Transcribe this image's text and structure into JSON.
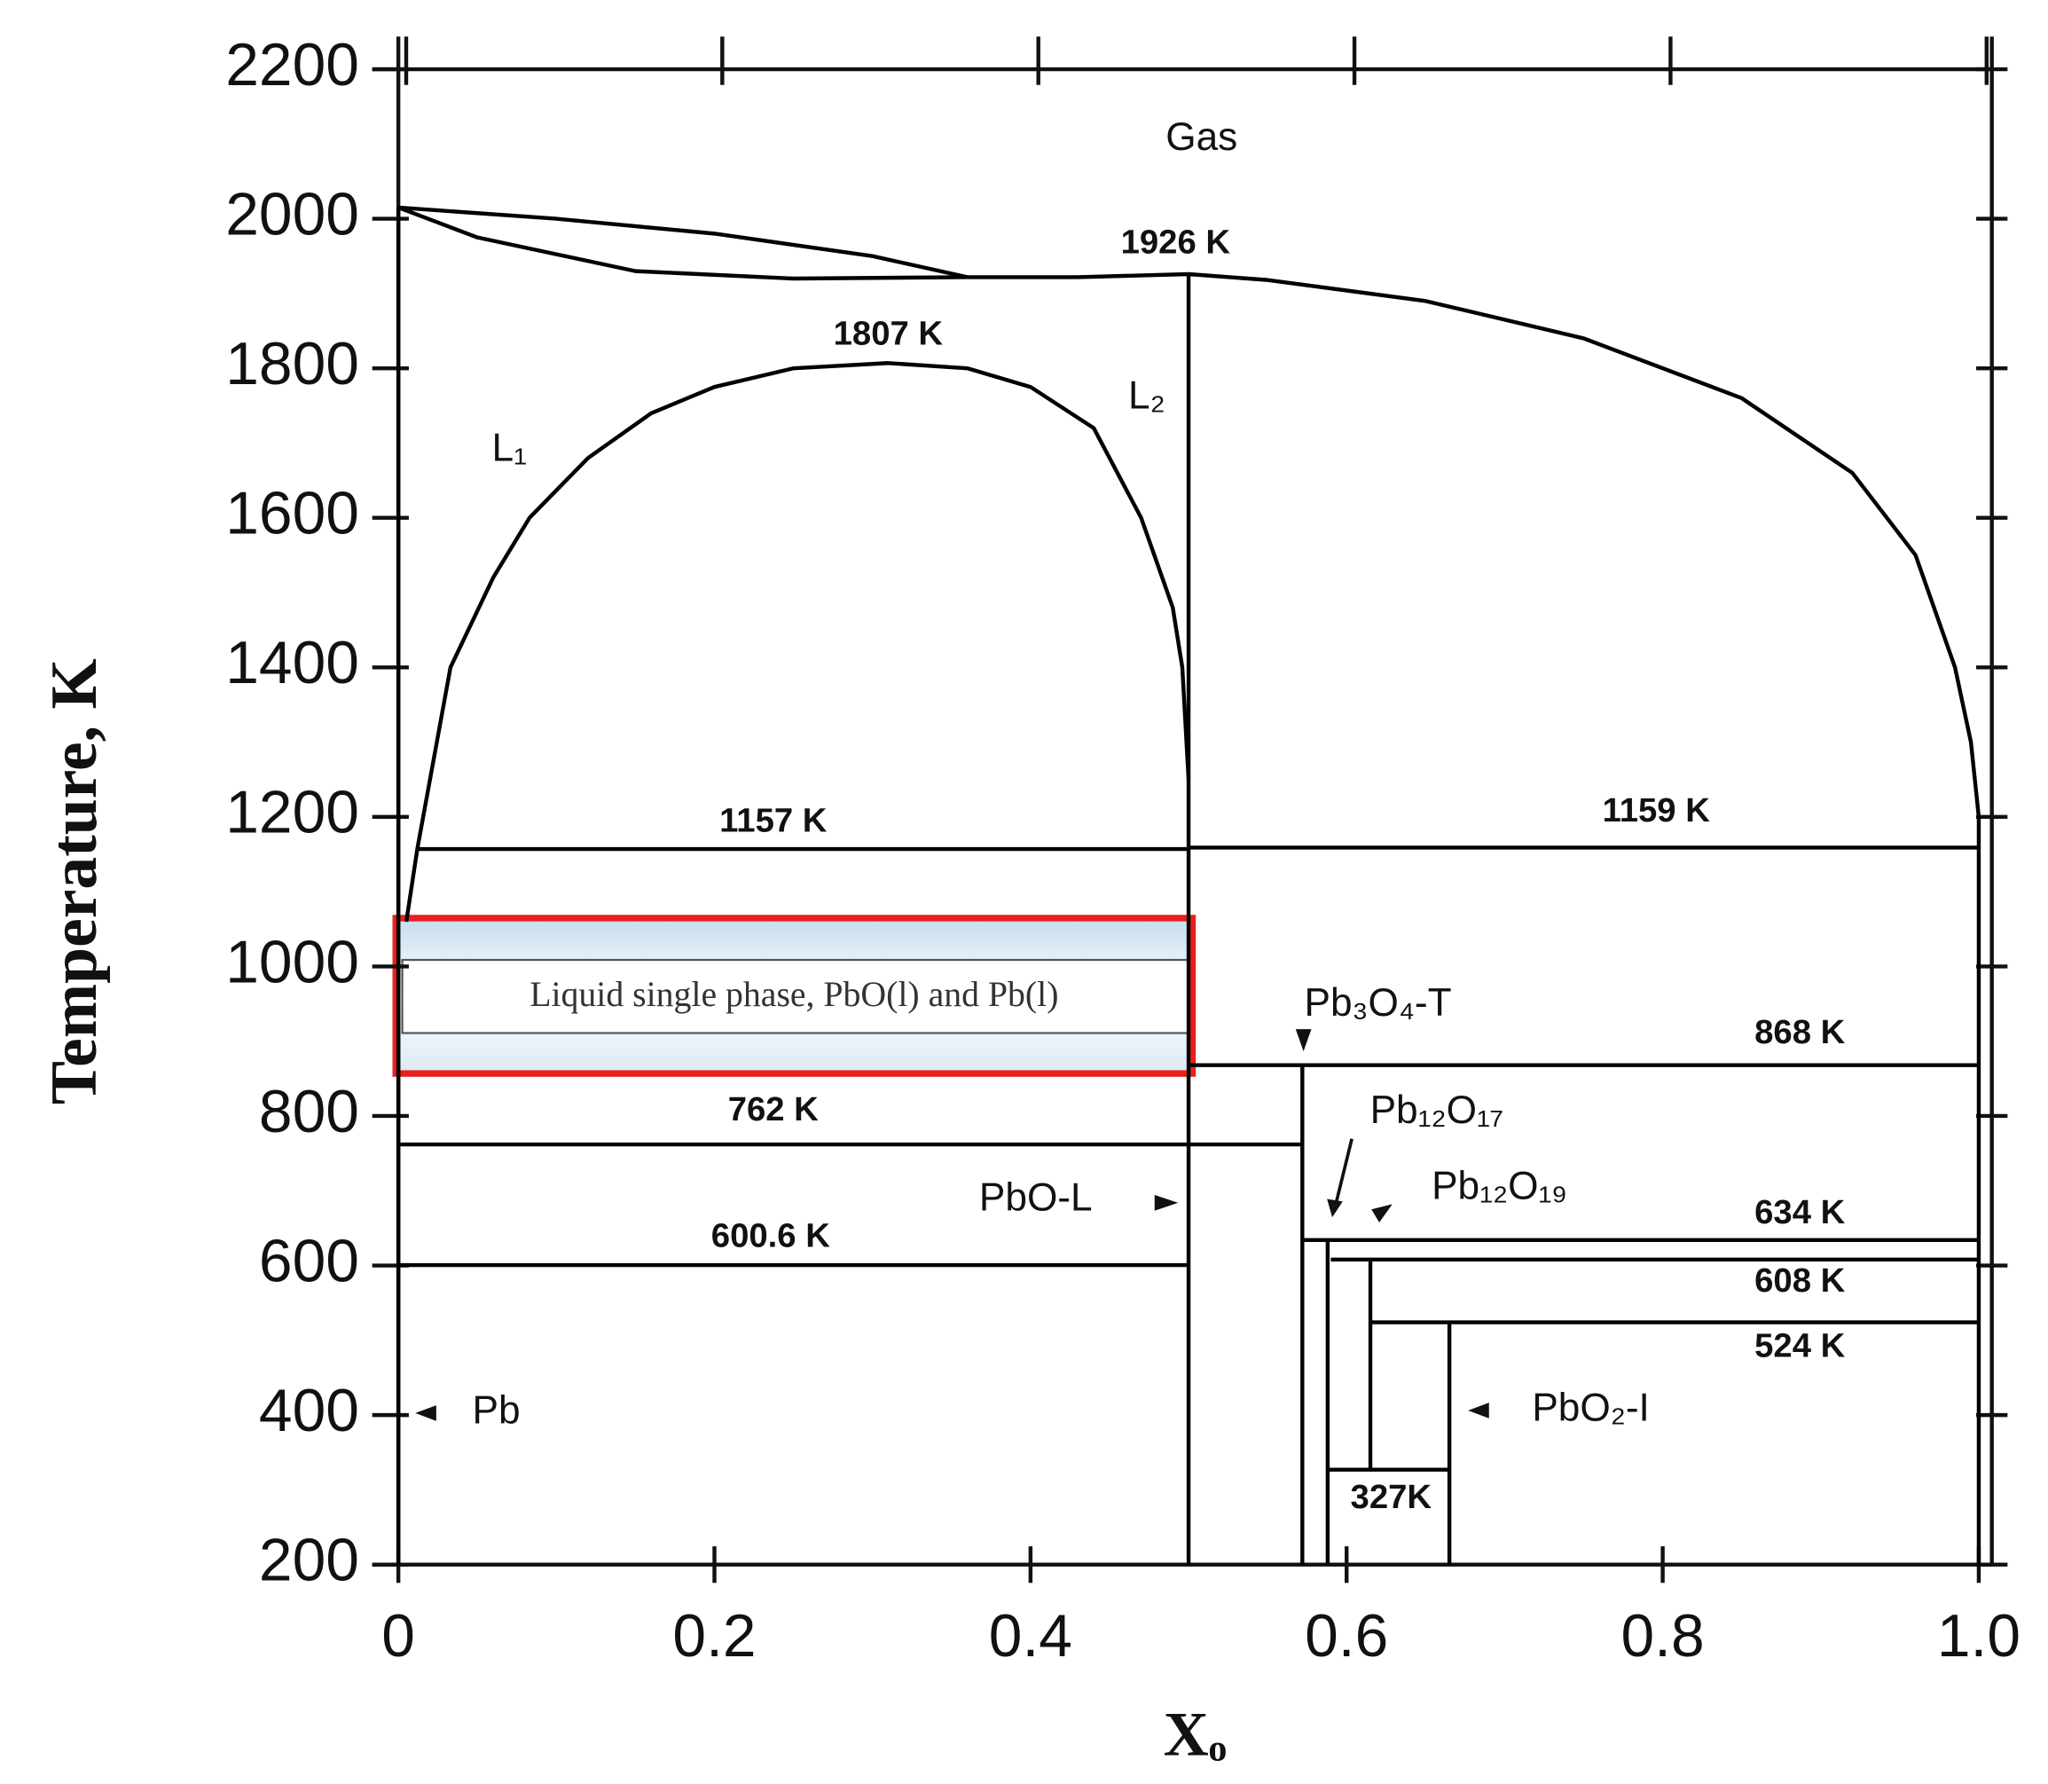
{
  "chart_data": {
    "type": "line",
    "color": "#000000",
    "ylabel": "Temperature, K",
    "xlabel": "Xₒ",
    "xlim": [
      0,
      1
    ],
    "xticks": [
      0,
      0.2,
      0.4,
      0.6,
      0.8,
      {
        "value": 1,
        "label": "1.0"
      }
    ],
    "ylim": [
      200,
      2200
    ],
    "yticks": [
      200,
      400,
      600,
      800,
      1000,
      1200,
      1400,
      1600,
      1800,
      2000,
      2200
    ],
    "grid": false,
    "highlight": "Liquid  single  phase, PbO(l) and Pb(l)",
    "annotations": [
      "Gas",
      "1926 K",
      "1807 K",
      "L₁",
      "L₂",
      "1157 K",
      "1159 K",
      "Pb₃O₄-T",
      "868 K",
      "762 K",
      "Pb₁₂O₁₇",
      "Pb₁₂O₁₉",
      "PbO-L",
      "634 K",
      "600.6 K",
      "608 K",
      "524 K",
      "Pb",
      "PbO₂-I",
      "327K"
    ],
    "series": [
      {
        "x": [
          0,
          0
        ],
        "values": [
          200,
          2015
        ]
      },
      {
        "x": [
          0.005,
          0.012,
          0.033,
          0.06,
          0.083,
          0.12,
          0.16,
          0.2,
          0.25,
          0.31,
          0.36,
          0.4,
          0.44,
          0.47,
          0.49,
          0.496,
          0.5
        ],
        "values": [
          1060,
          1157,
          1400,
          1520,
          1600,
          1680,
          1740,
          1775,
          1800,
          1807,
          1800,
          1775,
          1720,
          1600,
          1480,
          1400,
          1250
        ]
      },
      {
        "x": [
          0,
          0.1,
          0.2,
          0.3,
          0.36
        ],
        "values": [
          2015,
          2000,
          1980,
          1950,
          1922
        ]
      },
      {
        "x": [
          0,
          0.05,
          0.15,
          0.25,
          0.36,
          0.43,
          0.5,
          0.55,
          0.65,
          0.75,
          0.85,
          0.92,
          0.96,
          0.985,
          0.995,
          1
        ],
        "values": [
          2015,
          1975,
          1930,
          1920,
          1922,
          1922,
          1926,
          1918,
          1890,
          1840,
          1760,
          1660,
          1550,
          1400,
          1300,
          1200
        ]
      },
      {
        "x": [
          0.5,
          0.5
        ],
        "values": [
          200,
          1926
        ]
      },
      {
        "x": [
          0.012,
          0.5
        ],
        "values": [
          1157,
          1157
        ]
      },
      {
        "x": [
          0.5,
          1
        ],
        "values": [
          1159,
          1159
        ]
      },
      {
        "x": [
          0.5,
          1
        ],
        "values": [
          868,
          868
        ]
      },
      {
        "x": [
          0,
          0.572
        ],
        "values": [
          762,
          762
        ]
      },
      {
        "x": [
          0,
          0.5
        ],
        "values": [
          600.6,
          600.6
        ]
      },
      {
        "x": [
          0.572,
          1
        ],
        "values": [
          634,
          634
        ]
      },
      {
        "x": [
          0.59,
          1
        ],
        "values": [
          608,
          608
        ]
      },
      {
        "x": [
          0.615,
          1
        ],
        "values": [
          524,
          524
        ]
      },
      {
        "x": [
          0.588,
          0.665
        ],
        "values": [
          327,
          327
        ]
      },
      {
        "x": [
          0.572,
          0.572
        ],
        "values": [
          200,
          868
        ]
      },
      {
        "x": [
          0.588,
          0.588
        ],
        "values": [
          200,
          634
        ]
      },
      {
        "x": [
          0.615,
          0.615
        ],
        "values": [
          327,
          608
        ]
      },
      {
        "x": [
          0.665,
          0.665
        ],
        "values": [
          200,
          524
        ]
      },
      {
        "x": [
          1,
          1
        ],
        "values": [
          200,
          1200
        ]
      }
    ]
  }
}
